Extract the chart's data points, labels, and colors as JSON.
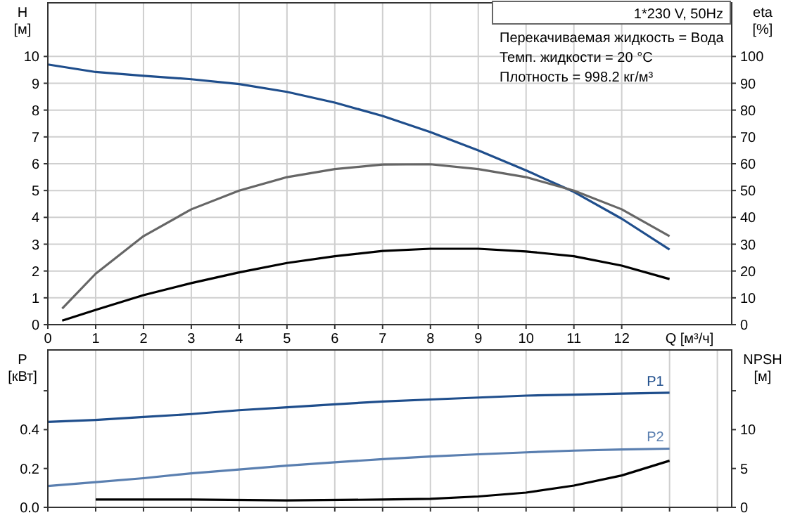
{
  "chart_data": [
    {
      "type": "line",
      "xlabel": "Q [м³/ч]",
      "ylabel": "H [м]",
      "y2label": "eta [%]",
      "annotations": [
        "1*230 V, 50Hz",
        "Перекачиваемая жидкость = Вода",
        "Темп. жидкости = 20 °C",
        "Плотность = 998.2 кг/м³"
      ],
      "xlim": [
        0,
        14.3
      ],
      "ylim": [
        0,
        12
      ],
      "y2lim": [
        0,
        120
      ],
      "xticks": [
        0,
        1,
        2,
        3,
        4,
        5,
        6,
        7,
        8,
        9,
        10,
        11,
        12
      ],
      "yticks": [
        0,
        1,
        2,
        3,
        4,
        5,
        6,
        7,
        8,
        9,
        10
      ],
      "y2ticks": [
        0,
        10,
        20,
        30,
        40,
        50,
        60,
        70,
        80,
        90,
        100
      ],
      "grid": true,
      "legend": false,
      "marker": "none",
      "line_style": "solid",
      "series": [
        {
          "color": "#1f4e8c",
          "x": [
            0,
            1,
            2,
            3,
            4,
            5,
            6,
            7,
            8,
            9,
            10,
            11,
            12,
            13
          ],
          "values": [
            9.7,
            9.42,
            9.28,
            9.15,
            8.97,
            8.68,
            8.28,
            7.78,
            7.18,
            6.5,
            5.75,
            4.95,
            3.95,
            2.8
          ]
        },
        {
          "color": "#666666",
          "axis": "y2",
          "x": [
            0.3,
            1,
            2,
            3,
            4,
            5,
            6,
            7,
            8,
            9,
            10,
            11,
            12,
            13
          ],
          "values": [
            6,
            19,
            33,
            43,
            50,
            55,
            58,
            59.7,
            59.8,
            58,
            55,
            50,
            43,
            33
          ]
        },
        {
          "color": "#000000",
          "axis": "y2",
          "x": [
            0.3,
            1,
            2,
            3,
            4,
            5,
            6,
            7,
            8,
            9,
            10,
            11,
            12,
            13
          ],
          "values": [
            1.5,
            5.5,
            11,
            15.5,
            19.5,
            23,
            25.5,
            27.5,
            28.3,
            28.3,
            27.3,
            25.5,
            22,
            17
          ]
        }
      ]
    },
    {
      "type": "line",
      "ylabel": "P [кВт]",
      "y2label": "NPSH [м]",
      "xlim": [
        0,
        14.3
      ],
      "ylim": [
        0,
        0.81
      ],
      "y2lim": [
        0,
        20.25
      ],
      "xticks": [
        0,
        1,
        2,
        3,
        4,
        5,
        6,
        7,
        8,
        9,
        10,
        11,
        12,
        {
          "value": 13,
          "label": null
        },
        {
          "value": 14,
          "label": null
        }
      ],
      "tick_labels": "y",
      "yticks": [
        {
          "value": 0,
          "label": "0.0"
        },
        {
          "value": 0.2,
          "label": "0.2"
        },
        {
          "value": 0.4,
          "label": "0.4"
        },
        {
          "value": 0.6,
          "label": null
        }
      ],
      "y2ticks": [
        0,
        5,
        10,
        {
          "value": 15,
          "label": null
        }
      ],
      "grid": "x",
      "legend": false,
      "marker": "none",
      "line_style": "solid",
      "series": [
        {
          "name": "P1",
          "color": "#1f4e8c",
          "x": [
            0,
            1,
            2,
            3,
            4,
            5,
            6,
            7,
            8,
            9,
            10,
            11,
            12,
            13
          ],
          "values": [
            0.44,
            0.45,
            0.465,
            0.48,
            0.5,
            0.515,
            0.53,
            0.545,
            0.555,
            0.565,
            0.575,
            0.58,
            0.585,
            0.59
          ]
        },
        {
          "name": "P2",
          "color": "#5a7fb0",
          "x": [
            0,
            1,
            2,
            3,
            4,
            5,
            6,
            7,
            8,
            9,
            10,
            11,
            12,
            13
          ],
          "values": [
            0.11,
            0.13,
            0.15,
            0.175,
            0.195,
            0.215,
            0.232,
            0.248,
            0.262,
            0.273,
            0.283,
            0.292,
            0.298,
            0.302
          ]
        },
        {
          "color": "#000000",
          "axis": "y2",
          "x": [
            1,
            3,
            5,
            7,
            8,
            9,
            10,
            11,
            12,
            13
          ],
          "values": [
            1.0,
            1.0,
            0.9,
            1.0,
            1.1,
            1.4,
            1.9,
            2.8,
            4.1,
            6.0
          ]
        }
      ]
    }
  ]
}
